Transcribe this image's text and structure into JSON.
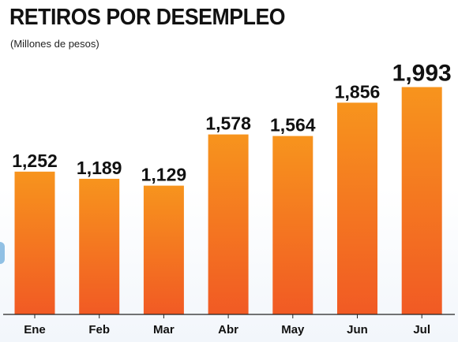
{
  "chart_data": {
    "type": "bar",
    "title": "RETIROS POR DESEMPLEO",
    "subtitle": "(Millones de pesos)",
    "categories": [
      "Ene",
      "Feb",
      "Mar",
      "Abr",
      "May",
      "Jun",
      "Jul"
    ],
    "values": [
      1252,
      1189,
      1129,
      1578,
      1564,
      1856,
      1993
    ],
    "value_labels": [
      "1,252",
      "1,189",
      "1,129",
      "1,578",
      "1,564",
      "1,856",
      "1,993"
    ],
    "highlight_index": 6,
    "ylim": [
      0,
      2100
    ],
    "grid": false,
    "legend": "none",
    "colors": {
      "bar_top": "#f7941d",
      "bar_bottom": "#f15a24",
      "axis": "#222222",
      "text": "#111111"
    }
  }
}
